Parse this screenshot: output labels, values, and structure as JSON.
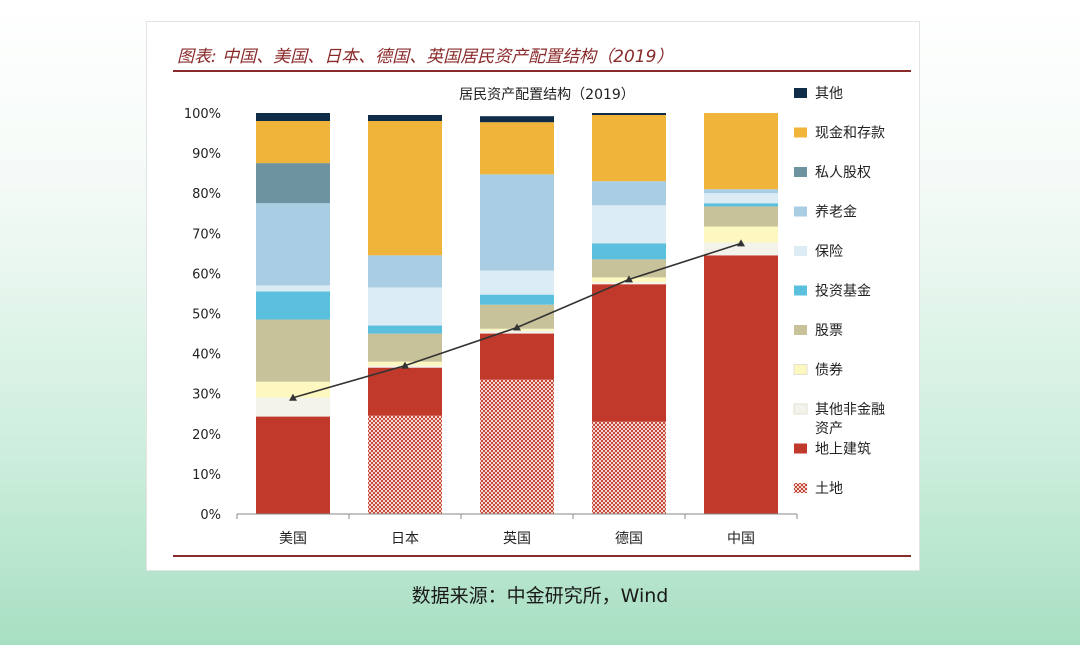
{
  "figure_title": "图表: 中国、美国、日本、德国、英国居民资产配置结构（2019）",
  "source_caption": "数据来源：中金研究所，Wind",
  "chart_data": {
    "type": "bar",
    "stacked": true,
    "title": "居民资产配置结构（2019）",
    "categories": [
      "美国",
      "日本",
      "英国",
      "德国",
      "中国"
    ],
    "ylim": [
      0,
      100
    ],
    "ytick_labels": [
      "0%",
      "10%",
      "20%",
      "30%",
      "40%",
      "50%",
      "60%",
      "70%",
      "80%",
      "90%",
      "100%"
    ],
    "legend_position": "right",
    "series": [
      {
        "name": "土地",
        "color": "#d9b2a8",
        "pattern": "checker",
        "values": [
          0,
          24.5,
          33.5,
          23,
          0
        ]
      },
      {
        "name": "地上建筑",
        "color": "#c0392b",
        "values": [
          24.3,
          12,
          11.5,
          34.3,
          64.5
        ]
      },
      {
        "name": "其他非金融资产",
        "color": "#f3f3ec",
        "values": [
          4.7,
          0.5,
          0.7,
          0.5,
          3.2
        ]
      },
      {
        "name": "债券",
        "color": "#fdf7c0",
        "values": [
          4,
          1,
          0.5,
          1.2,
          4
        ]
      },
      {
        "name": "股票",
        "color": "#c8c29a",
        "values": [
          15.5,
          7,
          6,
          4.5,
          5
        ]
      },
      {
        "name": "投资基金",
        "color": "#5bc0de",
        "values": [
          7,
          2,
          2.5,
          4,
          0.8
        ]
      },
      {
        "name": "保险",
        "color": "#dcecf4",
        "values": [
          1.5,
          9.5,
          6,
          9.5,
          2.5
        ]
      },
      {
        "name": "养老金",
        "color": "#a9cde3",
        "values": [
          20.5,
          8,
          24,
          6,
          1
        ]
      },
      {
        "name": "私人股权",
        "color": "#6c939f",
        "values": [
          10,
          0,
          0,
          0,
          0
        ]
      },
      {
        "name": "现金和存款",
        "color": "#f0b43a",
        "values": [
          10.5,
          33.5,
          13,
          16.5,
          19
        ]
      },
      {
        "name": "其他",
        "color": "#0f2c48",
        "values": [
          2,
          1.5,
          1.5,
          0.5,
          0
        ]
      }
    ],
    "line_series": {
      "color": "#333333",
      "values": [
        29,
        37,
        46.5,
        58.5,
        67.5
      ]
    }
  }
}
